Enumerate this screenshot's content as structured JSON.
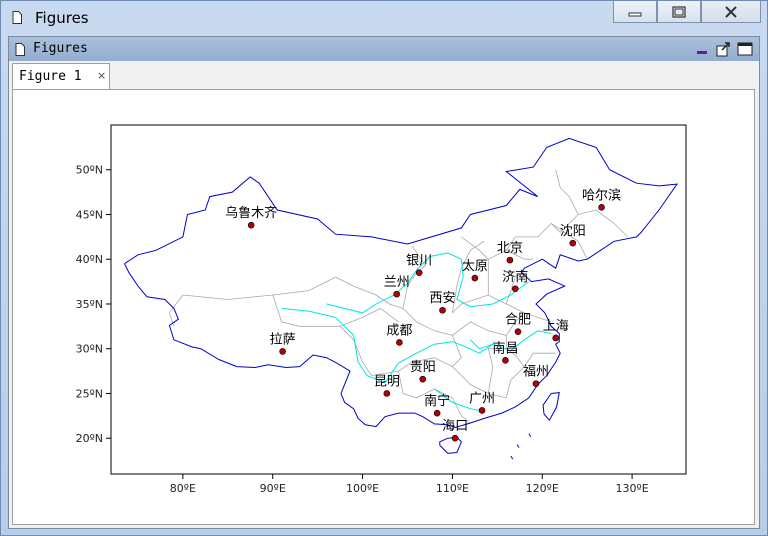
{
  "window": {
    "title": "Figures"
  },
  "panel": {
    "title": "Figures"
  },
  "tab": {
    "label": "Figure 1",
    "close": "×"
  },
  "icons": [
    "document-icon",
    "minimize-icon",
    "maximize-icon",
    "close-icon",
    "dock-icon",
    "undock-icon"
  ],
  "map": {
    "lat_labels": [
      "50ºN",
      "45ºN",
      "40ºN",
      "35ºN",
      "30ºN",
      "25ºN",
      "20ºN"
    ],
    "lon_labels": [
      "80ºE",
      "90ºE",
      "100ºE",
      "110ºE",
      "120ºE",
      "130ºE"
    ],
    "colors": {
      "border": "#0000cc",
      "provinces": "#a8a8a8",
      "rivers": "#00e5e5",
      "city_fill": "#b30000"
    },
    "cities": [
      {
        "name": "乌鲁木齐",
        "lon": 87.6,
        "lat": 43.8
      },
      {
        "name": "哈尔滨",
        "lon": 126.6,
        "lat": 45.8
      },
      {
        "name": "沈阳",
        "lon": 123.4,
        "lat": 41.8
      },
      {
        "name": "北京",
        "lon": 116.4,
        "lat": 39.9
      },
      {
        "name": "银川",
        "lon": 106.3,
        "lat": 38.5
      },
      {
        "name": "太原",
        "lon": 112.5,
        "lat": 37.9
      },
      {
        "name": "济南",
        "lon": 117.0,
        "lat": 36.7
      },
      {
        "name": "兰州",
        "lon": 103.8,
        "lat": 36.1
      },
      {
        "name": "西安",
        "lon": 108.9,
        "lat": 34.3
      },
      {
        "name": "合肥",
        "lon": 117.3,
        "lat": 31.9
      },
      {
        "name": "上海",
        "lon": 121.5,
        "lat": 31.2
      },
      {
        "name": "成都",
        "lon": 104.1,
        "lat": 30.7
      },
      {
        "name": "拉萨",
        "lon": 91.1,
        "lat": 29.7
      },
      {
        "name": "南昌",
        "lon": 115.9,
        "lat": 28.7
      },
      {
        "name": "贵阳",
        "lon": 106.7,
        "lat": 26.6
      },
      {
        "name": "福州",
        "lon": 119.3,
        "lat": 26.1
      },
      {
        "name": "昆明",
        "lon": 102.7,
        "lat": 25.0
      },
      {
        "name": "南宁",
        "lon": 108.3,
        "lat": 22.8
      },
      {
        "name": "广州",
        "lon": 113.3,
        "lat": 23.1
      },
      {
        "name": "海口",
        "lon": 110.3,
        "lat": 20.0
      }
    ]
  }
}
